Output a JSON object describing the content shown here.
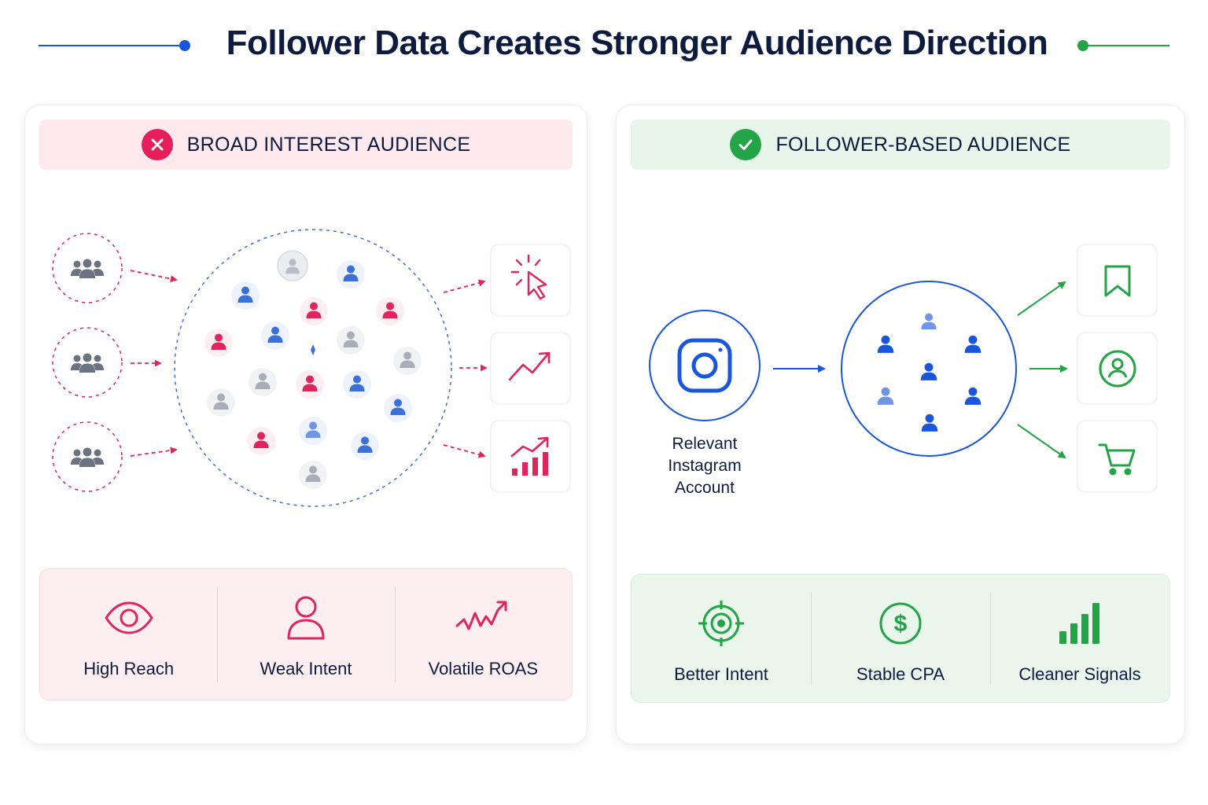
{
  "title": "Follower Data Creates Stronger Audience Direction",
  "colors": {
    "accent_blue": "#1a56db",
    "accent_green": "#22a447",
    "accent_pink": "#e61e5a",
    "person_blue": "#3b6fd9",
    "person_pink": "#e0245e",
    "person_gray": "#a8adb6"
  },
  "left_panel": {
    "header": "BROAD INTEREST AUDIENCE",
    "header_icon": "x-circle-icon",
    "source_icons": [
      "group-icon",
      "group-icon",
      "group-icon"
    ],
    "outcome_icons": [
      "cursor-click-icon",
      "trend-up-icon",
      "bar-chart-growth-icon"
    ],
    "metrics": [
      {
        "label": "High Reach",
        "icon": "eye-icon"
      },
      {
        "label": "Weak Intent",
        "icon": "user-icon"
      },
      {
        "label": "Volatile ROAS",
        "icon": "volatile-line-icon"
      }
    ]
  },
  "right_panel": {
    "header": "FOLLOWER-BASED AUDIENCE",
    "header_icon": "check-circle-icon",
    "source": {
      "label": "Relevant Instagram Account",
      "icon": "instagram-icon"
    },
    "outcome_icons": [
      "bookmark-icon",
      "user-circle-icon",
      "cart-icon"
    ],
    "metrics": [
      {
        "label": "Better Intent",
        "icon": "target-icon"
      },
      {
        "label": "Stable CPA",
        "icon": "dollar-circle-icon"
      },
      {
        "label": "Cleaner Signals",
        "icon": "signal-bars-icon"
      }
    ]
  }
}
